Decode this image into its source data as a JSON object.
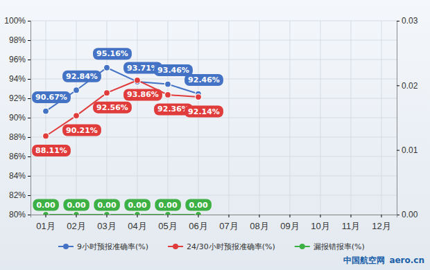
{
  "chart_data": {
    "type": "line",
    "categories": [
      "01月",
      "02月",
      "03月",
      "04月",
      "05月",
      "06月",
      "07月",
      "08月",
      "09月",
      "10月",
      "11月",
      "12月"
    ],
    "series": [
      {
        "name": "9小时预报准确率(%)",
        "color": "#4472c4",
        "marker": "circle",
        "values": [
          90.67,
          92.84,
          95.16,
          93.71,
          93.46,
          92.46,
          null,
          null,
          null,
          null,
          null,
          null
        ],
        "value_labels": [
          "90.67%",
          "92.84%",
          "95.16%",
          "93.71%",
          "93.46%",
          "92.46%",
          null,
          null,
          null,
          null,
          null,
          null
        ]
      },
      {
        "name": "24/30小时预报准确率(%)",
        "color": "#e03c3c",
        "marker": "circle",
        "values": [
          88.11,
          90.21,
          92.56,
          93.86,
          92.36,
          92.14,
          null,
          null,
          null,
          null,
          null,
          null
        ],
        "value_labels": [
          "88.11%",
          "90.21%",
          "92.56%",
          "93.86%",
          "92.36%",
          "92.14%",
          null,
          null,
          null,
          null,
          null,
          null
        ]
      },
      {
        "name": "漏报错报率(%)",
        "color": "#3cb043",
        "marker": "circle",
        "axis": "y2",
        "values": [
          0,
          0,
          0,
          0,
          0,
          0,
          null,
          null,
          null,
          null,
          null,
          null
        ],
        "value_labels": [
          "0.00",
          "0.00",
          "0.00",
          "0.00",
          "0.00",
          "0.00",
          null,
          null,
          null,
          null,
          null,
          null
        ]
      }
    ],
    "ylim": [
      80,
      100
    ],
    "yticks": [
      {
        "value": 80,
        "label": "80%"
      },
      {
        "value": 82,
        "label": "82%"
      },
      {
        "value": 84,
        "label": "84%"
      },
      {
        "value": 86,
        "label": "86%"
      },
      {
        "value": 88,
        "label": "88%"
      },
      {
        "value": 90,
        "label": "90%"
      },
      {
        "value": 92,
        "label": "92%"
      },
      {
        "value": 94,
        "label": "94%"
      },
      {
        "value": 96,
        "label": "96%"
      },
      {
        "value": 98,
        "label": "98%"
      },
      {
        "value": 100,
        "label": "100%"
      }
    ],
    "y2lim": [
      0,
      0.03
    ],
    "y2ticks": [
      {
        "value": 0,
        "label": "0.00"
      },
      {
        "value": 0.01,
        "label": "0.01"
      },
      {
        "value": 0.02,
        "label": "0.02"
      },
      {
        "value": 0.03,
        "label": "0.03"
      }
    ],
    "grid": true,
    "legend": "bottom",
    "data_labels": true,
    "annotations": [
      "中国航空网",
      "aero.cn"
    ]
  }
}
